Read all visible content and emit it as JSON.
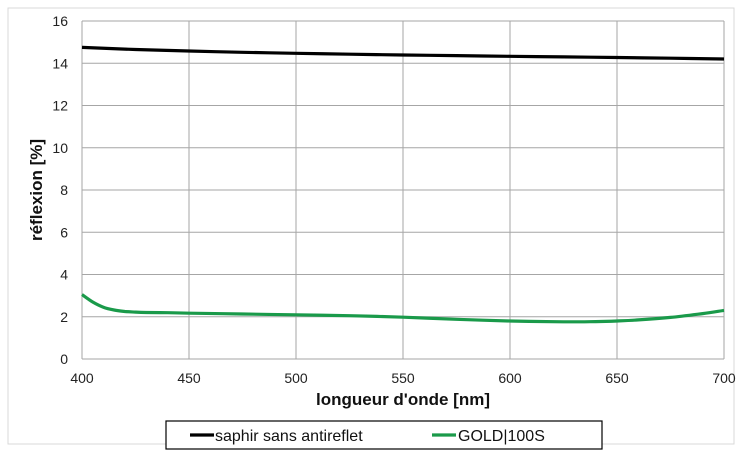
{
  "chart_data": {
    "type": "line",
    "title": "",
    "xlabel": "longueur d'onde [nm]",
    "ylabel": "réflexion [%]",
    "xlim": [
      400,
      700
    ],
    "ylim": [
      0,
      16
    ],
    "x_ticks": [
      400,
      450,
      500,
      550,
      600,
      650,
      700
    ],
    "y_ticks": [
      0,
      2,
      4,
      6,
      8,
      10,
      12,
      14,
      16
    ],
    "grid": true,
    "legend_position": "bottom",
    "series": [
      {
        "name": "saphir sans antireflet",
        "color": "#000000",
        "x": [
          400,
          425,
          450,
          475,
          500,
          525,
          550,
          575,
          600,
          625,
          650,
          675,
          700
        ],
        "y": [
          14.75,
          14.65,
          14.58,
          14.52,
          14.47,
          14.43,
          14.39,
          14.36,
          14.33,
          14.3,
          14.27,
          14.24,
          14.2
        ]
      },
      {
        "name": "GOLD|100S",
        "color": "#1a9a4a",
        "x": [
          400,
          405,
          410,
          415,
          420,
          425,
          430,
          440,
          450,
          475,
          500,
          525,
          550,
          575,
          600,
          625,
          640,
          650,
          660,
          675,
          690,
          700
        ],
        "y": [
          3.05,
          2.7,
          2.45,
          2.32,
          2.25,
          2.22,
          2.2,
          2.19,
          2.17,
          2.13,
          2.09,
          2.05,
          1.98,
          1.88,
          1.8,
          1.76,
          1.77,
          1.8,
          1.85,
          1.97,
          2.15,
          2.3
        ]
      }
    ]
  }
}
